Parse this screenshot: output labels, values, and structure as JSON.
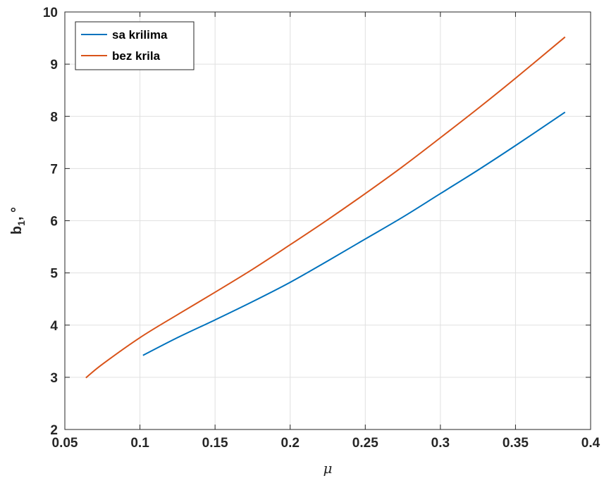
{
  "chart_data": {
    "type": "line",
    "xlabel": "μ",
    "ylabel_main": "b",
    "ylabel_sub": "1",
    "ylabel_tail": ", °",
    "xlim": [
      0.05,
      0.4
    ],
    "ylim": [
      2,
      10
    ],
    "xticks": [
      0.05,
      0.1,
      0.15,
      0.2,
      0.25,
      0.3,
      0.35,
      0.4
    ],
    "xtick_labels": [
      "0.05",
      "0.1",
      "0.15",
      "0.2",
      "0.25",
      "0.3",
      "0.35",
      "0.4"
    ],
    "yticks": [
      2,
      3,
      4,
      5,
      6,
      7,
      8,
      9,
      10
    ],
    "ytick_labels": [
      "2",
      "3",
      "4",
      "5",
      "6",
      "7",
      "8",
      "9",
      "10"
    ],
    "grid": true,
    "legend_position": "top-left",
    "series": [
      {
        "name": "sa krilima",
        "color": "#0072bd",
        "x": [
          0.102,
          0.125,
          0.15,
          0.175,
          0.2,
          0.225,
          0.25,
          0.275,
          0.3,
          0.325,
          0.35,
          0.383
        ],
        "y": [
          3.42,
          3.76,
          4.1,
          4.45,
          4.82,
          5.23,
          5.65,
          6.07,
          6.52,
          6.97,
          7.44,
          8.08
        ]
      },
      {
        "name": "bez krila",
        "color": "#d95319",
        "x": [
          0.064,
          0.075,
          0.1,
          0.125,
          0.15,
          0.175,
          0.2,
          0.225,
          0.25,
          0.275,
          0.3,
          0.325,
          0.35,
          0.383
        ],
        "y": [
          2.99,
          3.25,
          3.76,
          4.2,
          4.63,
          5.07,
          5.54,
          6.02,
          6.52,
          7.04,
          7.59,
          8.15,
          8.73,
          9.52
        ]
      }
    ]
  }
}
